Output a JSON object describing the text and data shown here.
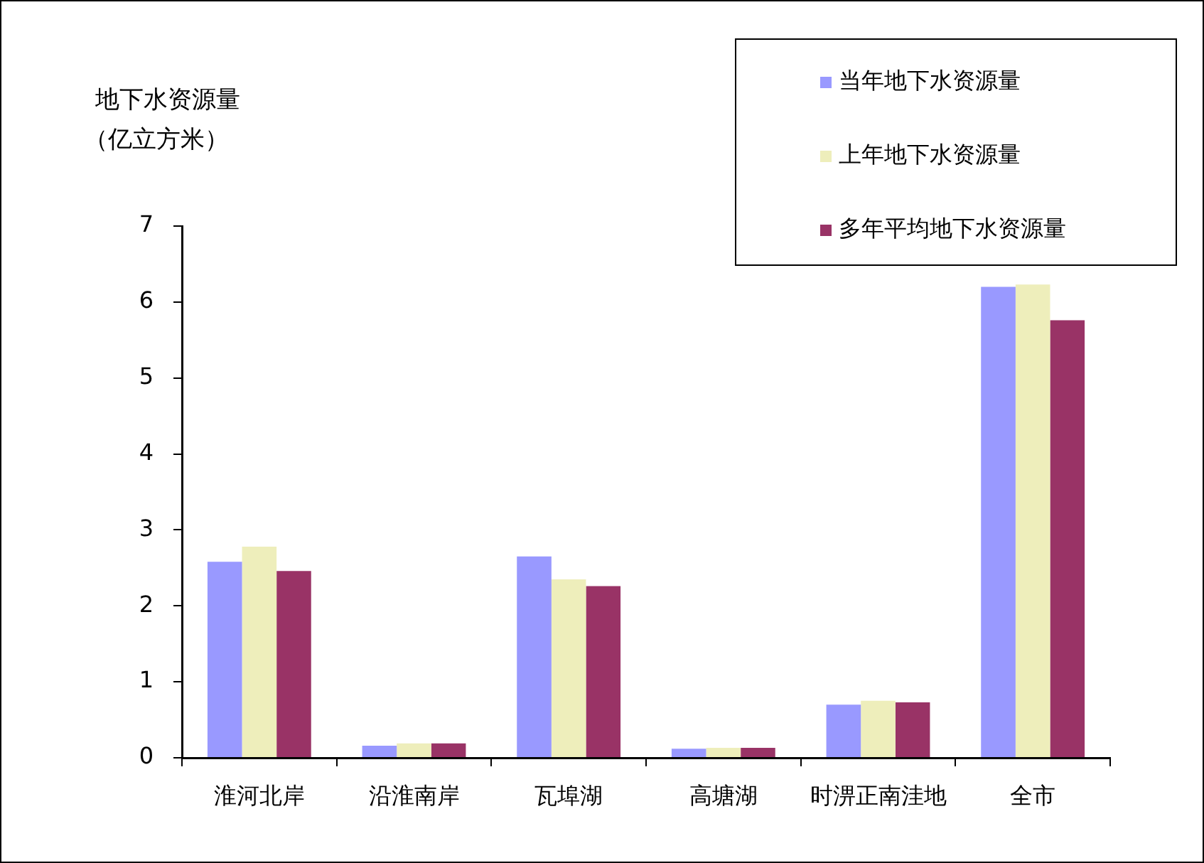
{
  "chart_data": {
    "type": "bar",
    "ylabel": "地下水资源量（亿立方米）",
    "categories": [
      "淮河北岸",
      "沿淮南岸",
      "瓦埠湖",
      "高塘湖",
      "时淠正南洼地",
      "全市"
    ],
    "series": [
      {
        "name": "当年地下水资源量",
        "color": "#9999ff",
        "values": [
          2.58,
          0.16,
          2.65,
          0.12,
          0.7,
          6.2
        ]
      },
      {
        "name": "上年地下水资源量",
        "color": "#eeeebb",
        "values": [
          2.78,
          0.19,
          2.35,
          0.13,
          0.75,
          6.23
        ]
      },
      {
        "name": "多年平均地下水资源量",
        "color": "#993366",
        "values": [
          2.46,
          0.19,
          2.26,
          0.13,
          0.73,
          5.76
        ]
      }
    ],
    "ylim": [
      0,
      7
    ],
    "yticks": [
      0,
      1,
      2,
      3,
      4,
      5,
      6,
      7
    ],
    "grid": false,
    "legend": "top right"
  }
}
